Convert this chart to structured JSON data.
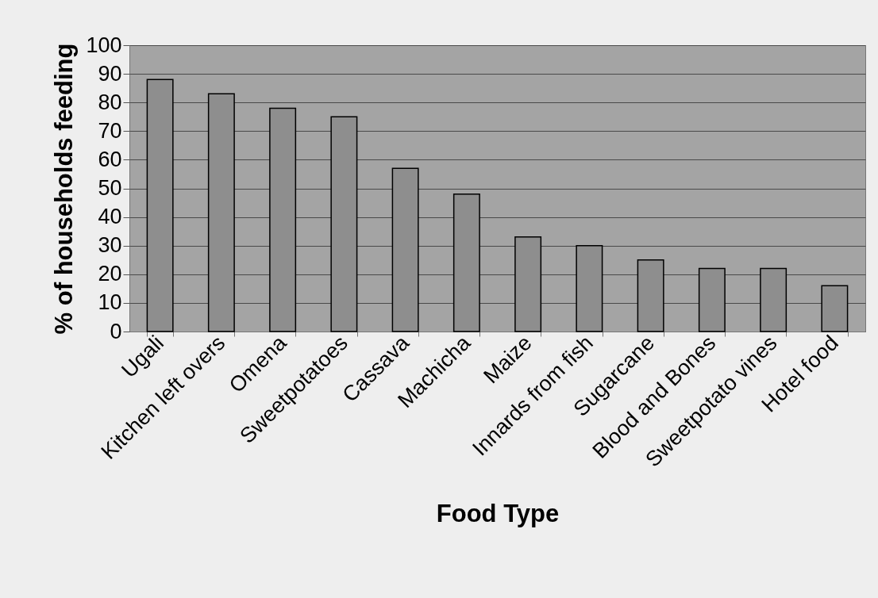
{
  "chart_data": {
    "type": "bar",
    "xlabel": "Food Type",
    "ylabel": "% of households feeding",
    "categories": [
      "Ugali",
      "Kitchen left overs",
      "Omena",
      "Sweetpotatoes",
      "Cassava",
      "Machicha",
      "Maize",
      "Innards from fish",
      "Sugarcane",
      "Blood and Bones",
      "Sweetpotato vines",
      "Hotel food"
    ],
    "values": [
      88,
      83,
      78,
      75,
      57,
      48,
      33,
      30,
      25,
      22,
      22,
      16
    ],
    "color": "#8e8e8e",
    "ylim": [
      0,
      100
    ],
    "yticks": [
      0,
      10,
      20,
      30,
      40,
      50,
      60,
      70,
      80,
      90,
      100
    ],
    "grid": "y"
  }
}
